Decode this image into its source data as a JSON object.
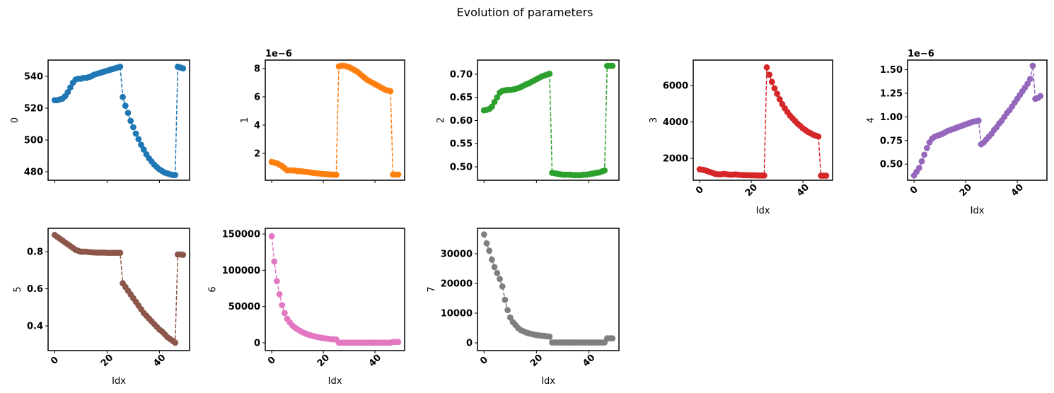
{
  "title": "Evolution of parameters",
  "chart_data": [
    {
      "type": "line",
      "ylabel": "0",
      "color": "#1f77b4",
      "linestyle": "dashed",
      "marker": "o",
      "show_xticklabels": false,
      "x": [
        0,
        1,
        2,
        3,
        4,
        5,
        6,
        7,
        8,
        9,
        10,
        11,
        12,
        13,
        14,
        15,
        16,
        17,
        18,
        19,
        20,
        21,
        22,
        23,
        24,
        25,
        26,
        27,
        28,
        29,
        30,
        31,
        32,
        33,
        34,
        35,
        36,
        37,
        38,
        39,
        40,
        41,
        42,
        43,
        44,
        45,
        46,
        47,
        48,
        49
      ],
      "values": [
        525,
        525,
        525.5,
        526,
        527.5,
        530,
        533,
        536,
        538,
        538.5,
        538.5,
        539,
        539,
        539.5,
        540,
        541,
        541.5,
        542,
        542.5,
        543,
        543.5,
        544,
        544.5,
        545,
        545.5,
        546,
        527,
        521.5,
        517,
        512,
        508,
        504,
        500.5,
        497,
        494,
        491,
        488.5,
        486.5,
        484.5,
        483,
        481.5,
        480.5,
        479.5,
        479,
        478.5,
        478,
        478,
        546,
        545.5,
        545
      ],
      "xlim": [
        -2.5,
        51.5
      ],
      "xticks": [
        0,
        20,
        40
      ],
      "ylim": [
        474.7,
        550.2
      ],
      "yticks": [
        480,
        500,
        520,
        540
      ]
    },
    {
      "type": "line",
      "ylabel": "1",
      "offset_text": "1e−6",
      "color": "#ff7f0e",
      "linestyle": "dashed",
      "marker": "o",
      "show_xticklabels": false,
      "x": [
        0,
        1,
        2,
        3,
        4,
        5,
        6,
        7,
        8,
        9,
        10,
        11,
        12,
        13,
        14,
        15,
        16,
        17,
        18,
        19,
        20,
        21,
        22,
        23,
        24,
        25,
        26,
        27,
        28,
        29,
        30,
        31,
        32,
        33,
        34,
        35,
        36,
        37,
        38,
        39,
        40,
        41,
        42,
        43,
        44,
        45,
        46,
        47,
        48,
        49
      ],
      "values": [
        1.4,
        1.35,
        1.3,
        1.2,
        1.1,
        0.95,
        0.8,
        0.8,
        0.8,
        0.78,
        0.75,
        0.75,
        0.72,
        0.7,
        0.68,
        0.65,
        0.62,
        0.6,
        0.58,
        0.56,
        0.55,
        0.53,
        0.52,
        0.5,
        0.5,
        0.48,
        8.15,
        8.2,
        8.2,
        8.15,
        8.1,
        8.0,
        7.9,
        7.8,
        7.65,
        7.5,
        7.35,
        7.2,
        7.1,
        7.0,
        6.9,
        6.8,
        6.7,
        6.6,
        6.5,
        6.45,
        6.4,
        0.5,
        0.5,
        0.5
      ],
      "xlim": [
        -2.5,
        51.5
      ],
      "xticks": [
        0,
        20,
        40
      ],
      "ylim": [
        0.1,
        8.6
      ],
      "yticks": [
        2,
        4,
        6,
        8
      ]
    },
    {
      "type": "line",
      "ylabel": "2",
      "color": "#2ca02c",
      "linestyle": "dashed",
      "marker": "o",
      "show_xticklabels": false,
      "x": [
        0,
        1,
        2,
        3,
        4,
        5,
        6,
        7,
        8,
        9,
        10,
        11,
        12,
        13,
        14,
        15,
        16,
        17,
        18,
        19,
        20,
        21,
        22,
        23,
        24,
        25,
        26,
        27,
        28,
        29,
        30,
        31,
        32,
        33,
        34,
        35,
        36,
        37,
        38,
        39,
        40,
        41,
        42,
        43,
        44,
        45,
        46,
        47,
        48,
        49
      ],
      "values": [
        0.622,
        0.623,
        0.625,
        0.63,
        0.64,
        0.65,
        0.66,
        0.664,
        0.665,
        0.666,
        0.666,
        0.667,
        0.668,
        0.67,
        0.672,
        0.675,
        0.678,
        0.68,
        0.683,
        0.686,
        0.689,
        0.692,
        0.695,
        0.697,
        0.699,
        0.701,
        0.487,
        0.486,
        0.485,
        0.484,
        0.483,
        0.483,
        0.483,
        0.483,
        0.482,
        0.482,
        0.482,
        0.482,
        0.483,
        0.483,
        0.484,
        0.485,
        0.486,
        0.487,
        0.488,
        0.49,
        0.492,
        0.718,
        0.718,
        0.718
      ],
      "xlim": [
        -2.5,
        51.5
      ],
      "xticks": [
        0,
        20,
        40
      ],
      "ylim": [
        0.471,
        0.7305
      ],
      "yticks": [
        {
          "value": 0.5,
          "label": "0.50"
        },
        {
          "value": 0.55,
          "label": "0.55"
        },
        {
          "value": 0.6,
          "label": "0.60"
        },
        {
          "value": 0.65,
          "label": "0.65"
        },
        {
          "value": 0.7,
          "label": "0.70"
        }
      ]
    },
    {
      "type": "line",
      "ylabel": "3",
      "xlabel": "Idx",
      "color": "#d62728",
      "linestyle": "dashed",
      "marker": "o",
      "show_xticklabels": true,
      "x": [
        0,
        1,
        2,
        3,
        4,
        5,
        6,
        7,
        8,
        9,
        10,
        11,
        12,
        13,
        14,
        15,
        16,
        17,
        18,
        19,
        20,
        21,
        22,
        23,
        24,
        25,
        26,
        27,
        28,
        29,
        30,
        31,
        32,
        33,
        34,
        35,
        36,
        37,
        38,
        39,
        40,
        41,
        42,
        43,
        44,
        45,
        46,
        47,
        48,
        49
      ],
      "values": [
        1400,
        1380,
        1350,
        1300,
        1250,
        1200,
        1150,
        1130,
        1120,
        1150,
        1140,
        1120,
        1100,
        1110,
        1120,
        1100,
        1090,
        1080,
        1080,
        1075,
        1070,
        1070,
        1065,
        1060,
        1060,
        1060,
        7000,
        6600,
        6200,
        5850,
        5550,
        5250,
        4980,
        4750,
        4550,
        4350,
        4200,
        4050,
        3900,
        3780,
        3650,
        3550,
        3450,
        3380,
        3300,
        3250,
        3200,
        1050,
        1050,
        1050
      ],
      "xlim": [
        -2.5,
        51.5
      ],
      "xticks": [
        0,
        20,
        40
      ],
      "ylim": [
        800,
        7400
      ],
      "yticks": [
        2000,
        4000,
        6000
      ]
    },
    {
      "type": "line",
      "ylabel": "4",
      "xlabel": "Idx",
      "offset_text": "1e−6",
      "color": "#9467bd",
      "linestyle": "dashed",
      "marker": "o",
      "show_xticklabels": true,
      "x": [
        0,
        1,
        2,
        3,
        4,
        5,
        6,
        7,
        8,
        9,
        10,
        11,
        12,
        13,
        14,
        15,
        16,
        17,
        18,
        19,
        20,
        21,
        22,
        23,
        24,
        25,
        26,
        27,
        28,
        29,
        30,
        31,
        32,
        33,
        34,
        35,
        36,
        37,
        38,
        39,
        40,
        41,
        42,
        43,
        44,
        45,
        46,
        47,
        48,
        49
      ],
      "values": [
        0.38,
        0.42,
        0.46,
        0.53,
        0.6,
        0.67,
        0.73,
        0.77,
        0.79,
        0.8,
        0.81,
        0.82,
        0.835,
        0.85,
        0.86,
        0.87,
        0.88,
        0.89,
        0.9,
        0.91,
        0.92,
        0.93,
        0.94,
        0.95,
        0.955,
        0.96,
        0.71,
        0.73,
        0.76,
        0.79,
        0.82,
        0.86,
        0.89,
        0.93,
        0.96,
        1.0,
        1.04,
        1.07,
        1.11,
        1.15,
        1.19,
        1.23,
        1.27,
        1.31,
        1.35,
        1.4,
        1.54,
        1.19,
        1.2,
        1.22
      ],
      "xlim": [
        -2.5,
        51.5
      ],
      "xticks": [
        0,
        20,
        40
      ],
      "ylim": [
        0.33,
        1.6
      ],
      "yticks": [
        {
          "value": 0.5,
          "label": "0.50"
        },
        {
          "value": 0.75,
          "label": "0.75"
        },
        {
          "value": 1.0,
          "label": "1.00"
        },
        {
          "value": 1.25,
          "label": "1.25"
        },
        {
          "value": 1.5,
          "label": "1.50"
        }
      ]
    },
    {
      "type": "line",
      "ylabel": "5",
      "xlabel": "Idx",
      "color": "#8c564b",
      "linestyle": "dashed",
      "marker": "o",
      "show_xticklabels": true,
      "x": [
        0,
        1,
        2,
        3,
        4,
        5,
        6,
        7,
        8,
        9,
        10,
        11,
        12,
        13,
        14,
        15,
        16,
        17,
        18,
        19,
        20,
        21,
        22,
        23,
        24,
        25,
        26,
        27,
        28,
        29,
        30,
        31,
        32,
        33,
        34,
        35,
        36,
        37,
        38,
        39,
        40,
        41,
        42,
        43,
        44,
        45,
        46,
        47,
        48,
        49
      ],
      "values": [
        0.89,
        0.88,
        0.87,
        0.86,
        0.85,
        0.84,
        0.83,
        0.82,
        0.81,
        0.805,
        0.8,
        0.8,
        0.8,
        0.798,
        0.797,
        0.796,
        0.795,
        0.795,
        0.795,
        0.795,
        0.794,
        0.794,
        0.794,
        0.794,
        0.794,
        0.794,
        0.63,
        0.61,
        0.59,
        0.57,
        0.55,
        0.53,
        0.51,
        0.49,
        0.47,
        0.455,
        0.44,
        0.425,
        0.41,
        0.395,
        0.38,
        0.37,
        0.355,
        0.34,
        0.33,
        0.32,
        0.31,
        0.785,
        0.785,
        0.783
      ],
      "xlim": [
        -2.5,
        51.5
      ],
      "xticks": [
        0,
        20,
        40
      ],
      "ylim": [
        0.267,
        0.926
      ],
      "yticks": [
        0.4,
        0.6,
        0.8
      ]
    },
    {
      "type": "line",
      "ylabel": "6",
      "xlabel": "Idx",
      "color": "#e377c2",
      "linestyle": "dashed",
      "marker": "o",
      "show_xticklabels": true,
      "x": [
        0,
        1,
        2,
        3,
        4,
        5,
        6,
        7,
        8,
        9,
        10,
        11,
        12,
        13,
        14,
        15,
        16,
        17,
        18,
        19,
        20,
        21,
        22,
        23,
        24,
        25,
        26,
        27,
        28,
        29,
        30,
        31,
        32,
        33,
        34,
        35,
        36,
        37,
        38,
        39,
        40,
        41,
        42,
        43,
        44,
        45,
        46,
        47,
        48,
        49
      ],
      "values": [
        147000,
        112000,
        85000,
        67000,
        52000,
        41000,
        33000,
        28000,
        24000,
        21000,
        18500,
        16500,
        14500,
        13000,
        11500,
        10500,
        9500,
        8500,
        7800,
        7000,
        6500,
        6000,
        5500,
        5000,
        4800,
        4500,
        200,
        200,
        200,
        200,
        200,
        200,
        200,
        200,
        200,
        200,
        200,
        200,
        200,
        200,
        200,
        200,
        200,
        200,
        200,
        200,
        200,
        1200,
        1200,
        1200
      ],
      "xlim": [
        -2.5,
        51.5
      ],
      "xticks": [
        0,
        20,
        40
      ],
      "ylim": [
        -10700,
        157800
      ],
      "yticks": [
        0,
        50000,
        100000,
        150000
      ]
    },
    {
      "type": "line",
      "ylabel": "7",
      "xlabel": "Idx",
      "color": "#7f7f7f",
      "linestyle": "dashed",
      "marker": "o",
      "show_xticklabels": true,
      "x": [
        0,
        1,
        2,
        3,
        4,
        5,
        6,
        7,
        8,
        9,
        10,
        11,
        12,
        13,
        14,
        15,
        16,
        17,
        18,
        19,
        20,
        21,
        22,
        23,
        24,
        25,
        26,
        27,
        28,
        29,
        30,
        31,
        32,
        33,
        34,
        35,
        36,
        37,
        38,
        39,
        40,
        41,
        42,
        43,
        44,
        45,
        46,
        47,
        48,
        49
      ],
      "values": [
        36500,
        33500,
        31000,
        28000,
        25500,
        23500,
        21500,
        19000,
        14500,
        11000,
        8500,
        7000,
        6000,
        5000,
        4300,
        3900,
        3500,
        3200,
        3000,
        2800,
        2600,
        2500,
        2400,
        2300,
        2200,
        2100,
        100,
        100,
        100,
        100,
        100,
        100,
        100,
        100,
        100,
        100,
        100,
        100,
        100,
        100,
        100,
        100,
        100,
        100,
        100,
        100,
        100,
        1500,
        1500,
        1500
      ],
      "xlim": [
        -2.5,
        51.5
      ],
      "xticks": [
        0,
        20,
        40
      ],
      "ylim": [
        -2620,
        38570
      ],
      "yticks": [
        0,
        10000,
        20000,
        30000
      ]
    }
  ]
}
